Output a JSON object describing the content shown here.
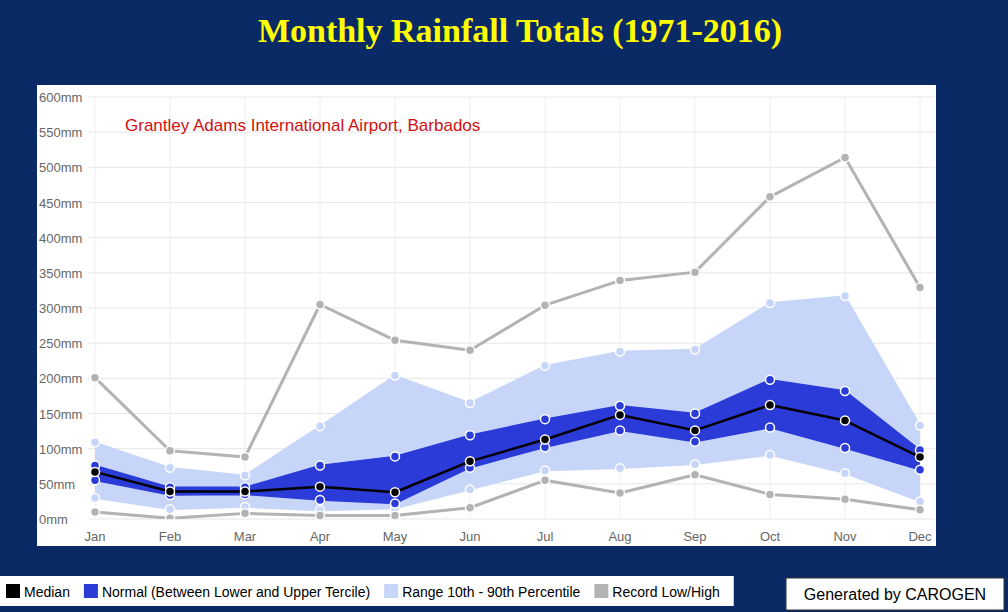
{
  "chart_data": {
    "type": "line",
    "title": "Monthly Rainfall Totals (1971-2016)",
    "subtitle": "Grantley Adams International Airport, Barbados",
    "credit": "Generated by CAROGEN",
    "categories": [
      "Jan",
      "Feb",
      "Mar",
      "Apr",
      "May",
      "Jun",
      "Jul",
      "Aug",
      "Sep",
      "Oct",
      "Nov",
      "Dec"
    ],
    "ylim": [
      0,
      600
    ],
    "yticks": [
      {
        "value": 0,
        "label": "0mm"
      },
      {
        "value": 50,
        "label": "50mm"
      },
      {
        "value": 100,
        "label": "100mm"
      },
      {
        "value": 150,
        "label": "150mm"
      },
      {
        "value": 200,
        "label": "200mm"
      },
      {
        "value": 250,
        "label": "250mm"
      },
      {
        "value": 300,
        "label": "300mm"
      },
      {
        "value": 350,
        "label": "350mm"
      },
      {
        "value": 400,
        "label": "400mm"
      },
      {
        "value": 450,
        "label": "450mm"
      },
      {
        "value": 500,
        "label": "500mm"
      },
      {
        "value": 550,
        "label": "550mm"
      },
      {
        "value": 600,
        "label": "600mm"
      }
    ],
    "grid": true,
    "legend": "bottom",
    "series": [
      {
        "name": "Median",
        "type": "line",
        "color": "#000000",
        "marker": "circle",
        "values": [
          67,
          39,
          39,
          46,
          38,
          82,
          113,
          148,
          126,
          162,
          140,
          88
        ]
      },
      {
        "name": "Normal (Between Lower and Upper Tercile)",
        "type": "band",
        "color": "#2b3bd8",
        "marker": "circle",
        "lower": [
          55,
          34,
          35,
          27,
          22,
          73,
          102,
          126,
          110,
          130,
          101,
          70
        ],
        "upper": [
          76,
          45,
          45,
          76,
          89,
          119,
          142,
          161,
          150,
          198,
          182,
          98
        ]
      },
      {
        "name": "Range 10th - 90th Percentile",
        "type": "band",
        "color": "#c6d5f8",
        "marker": "circle",
        "lower": [
          30,
          14,
          17,
          12,
          15,
          42,
          69,
          72,
          78,
          91,
          65,
          25
        ],
        "upper": [
          109,
          73,
          62,
          132,
          204,
          165,
          218,
          238,
          241,
          307,
          317,
          133
        ]
      },
      {
        "name": "Record Low/High",
        "type": "range_lines",
        "color": "#b3b3b3",
        "marker": "circle",
        "lower": [
          10,
          1,
          8,
          5,
          5,
          16,
          55,
          37,
          63,
          35,
          28,
          13
        ],
        "upper": [
          201,
          97,
          88,
          305,
          254,
          240,
          304,
          339,
          351,
          458,
          514,
          329
        ]
      }
    ]
  }
}
